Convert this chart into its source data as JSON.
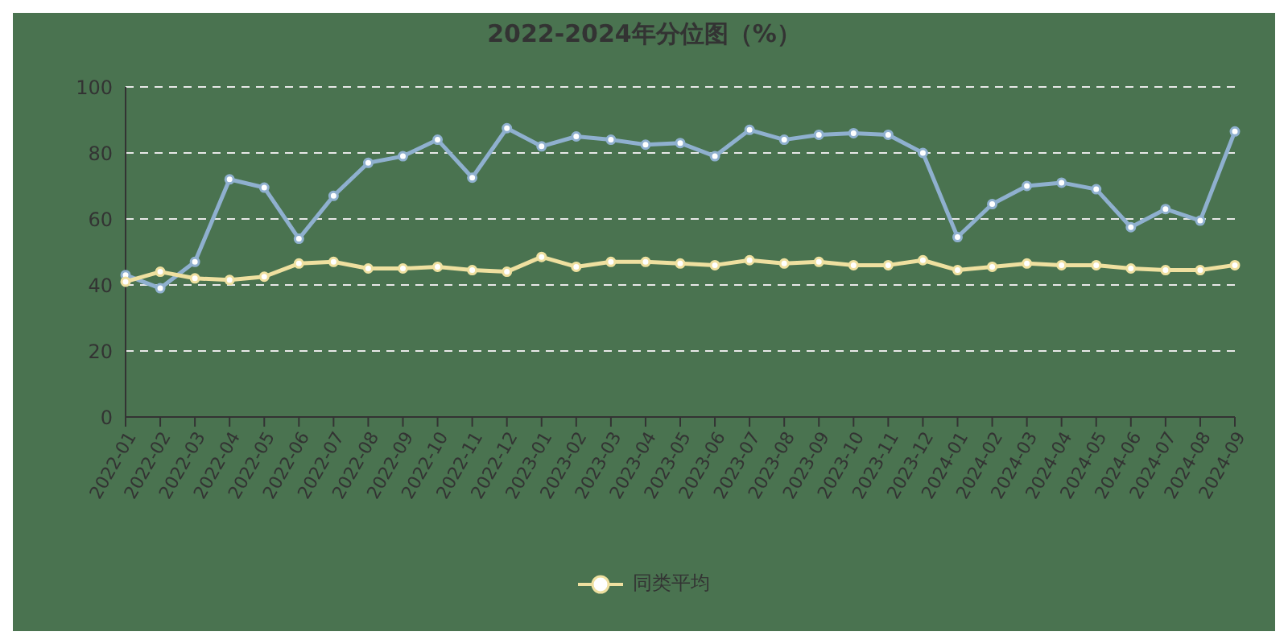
{
  "chart_data": {
    "type": "line",
    "title": "2022-2024年分位图（%）",
    "categories": [
      "2022-01",
      "2022-02",
      "2022-03",
      "2022-04",
      "2022-05",
      "2022-06",
      "2022-07",
      "2022-08",
      "2022-09",
      "2022-10",
      "2022-11",
      "2022-12",
      "2023-01",
      "2023-02",
      "2023-03",
      "2023-04",
      "2023-05",
      "2023-06",
      "2023-07",
      "2023-08",
      "2023-09",
      "2023-10",
      "2023-11",
      "2023-12",
      "2024-01",
      "2024-02",
      "2024-03",
      "2024-04",
      "2024-05",
      "2024-06",
      "2024-07",
      "2024-08",
      "2024-09"
    ],
    "series": [
      {
        "color": "#8fb0cf",
        "values": [
          43,
          39,
          47,
          72,
          69.5,
          54,
          67,
          77,
          79,
          84,
          72.5,
          87.5,
          82,
          85,
          84,
          82.5,
          83,
          79,
          87,
          84,
          85.5,
          86,
          85.5,
          80,
          54.5,
          64.5,
          70,
          71,
          69,
          57.5,
          63,
          59.5,
          86.5
        ]
      },
      {
        "name": "同类平均",
        "color": "#efe0a0",
        "values": [
          41,
          44,
          42,
          41.5,
          42.5,
          46.5,
          47,
          45,
          45,
          45.5,
          44.5,
          44,
          48.5,
          45.5,
          47,
          47,
          46.5,
          46,
          47.5,
          46.5,
          47,
          46,
          46,
          47.5,
          44.5,
          45.5,
          46.5,
          46,
          46,
          45,
          44.5,
          44.5,
          46
        ]
      }
    ],
    "ylim": [
      0,
      100
    ],
    "yticks": [
      0,
      20,
      40,
      60,
      80,
      100
    ],
    "grid": "y",
    "legend": "bottom",
    "marker": "circle",
    "line_style": "solid"
  }
}
